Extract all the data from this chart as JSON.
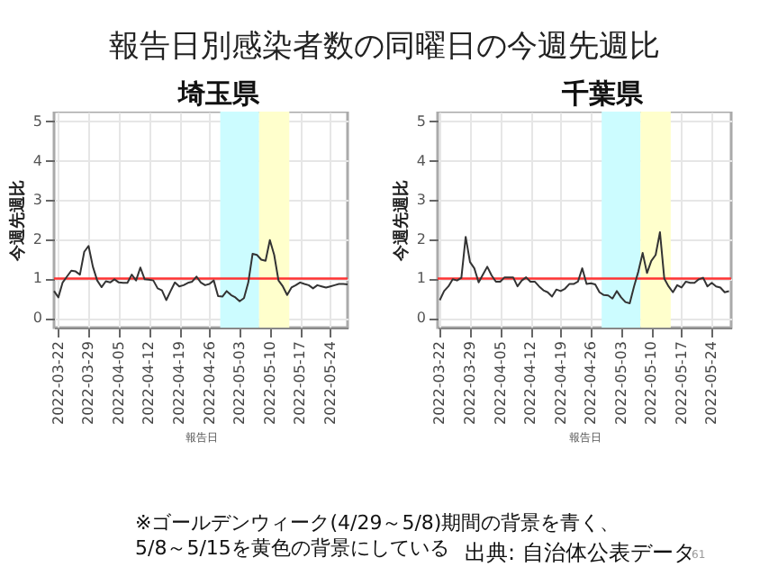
{
  "chart_data": [
    {
      "type": "other",
      "title": "報告日別感染者数の同曜日の今週先週比",
      "annotations": [
        "※ゴールデンウィーク(4/29～5/8)期間の背景を青く、\n5/8～5/15を黄色の背景にしている",
        "出典: 自治体公表データ",
        "61"
      ]
    },
    {
      "type": "line",
      "title": "埼玉県",
      "xlabel": "報告日",
      "ylabel": "今週先週比",
      "x": [
        "2022-03-21",
        "2022-03-22",
        "2022-03-23",
        "2022-03-24",
        "2022-03-25",
        "2022-03-26",
        "2022-03-27",
        "2022-03-28",
        "2022-03-29",
        "2022-03-30",
        "2022-03-31",
        "2022-04-01",
        "2022-04-02",
        "2022-04-03",
        "2022-04-04",
        "2022-04-05",
        "2022-04-06",
        "2022-04-07",
        "2022-04-08",
        "2022-04-09",
        "2022-04-10",
        "2022-04-11",
        "2022-04-12",
        "2022-04-13",
        "2022-04-14",
        "2022-04-15",
        "2022-04-16",
        "2022-04-17",
        "2022-04-18",
        "2022-04-19",
        "2022-04-20",
        "2022-04-21",
        "2022-04-22",
        "2022-04-23",
        "2022-04-24",
        "2022-04-25",
        "2022-04-26",
        "2022-04-27",
        "2022-04-28",
        "2022-04-29",
        "2022-04-30",
        "2022-05-01",
        "2022-05-02",
        "2022-05-03",
        "2022-05-04",
        "2022-05-05",
        "2022-05-06",
        "2022-05-07",
        "2022-05-08",
        "2022-05-09",
        "2022-05-10",
        "2022-05-11",
        "2022-05-12",
        "2022-05-13",
        "2022-05-14",
        "2022-05-15",
        "2022-05-16",
        "2022-05-17",
        "2022-05-18",
        "2022-05-19",
        "2022-05-20",
        "2022-05-21",
        "2022-05-22",
        "2022-05-23",
        "2022-05-24",
        "2022-05-25",
        "2022-05-26",
        "2022-05-27",
        "2022-05-28"
      ],
      "series": [
        {
          "color": "#333333",
          "values": [
            0.68,
            0.52,
            0.9,
            1.05,
            1.2,
            1.18,
            1.1,
            1.68,
            1.83,
            1.3,
            0.95,
            0.78,
            0.93,
            0.9,
            0.98,
            0.9,
            0.89,
            0.89,
            1.1,
            0.95,
            1.28,
            0.98,
            0.97,
            0.95,
            0.75,
            0.7,
            0.45,
            0.68,
            0.9,
            0.8,
            0.83,
            0.89,
            0.92,
            1.05,
            0.9,
            0.83,
            0.86,
            0.95,
            0.55,
            0.54,
            0.68,
            0.58,
            0.52,
            0.42,
            0.5,
            0.9,
            1.63,
            1.6,
            1.48,
            1.45,
            1.98,
            1.6,
            0.95,
            0.8,
            0.58,
            0.77,
            0.83,
            0.9,
            0.86,
            0.83,
            0.75,
            0.83,
            0.8,
            0.77,
            0.8,
            0.83,
            0.86,
            0.86,
            0.85
          ]
        }
      ],
      "xlim": [
        "2022-03-21",
        "2022-05-28"
      ],
      "ylim": [
        -0.25,
        5.25
      ],
      "yticks": [
        0,
        1,
        2,
        3,
        4,
        5
      ],
      "xticks": [
        "2022-03-22",
        "2022-03-29",
        "2022-04-05",
        "2022-04-12",
        "2022-04-19",
        "2022-04-26",
        "2022-05-03",
        "2022-05-10",
        "2022-05-17",
        "2022-05-24"
      ],
      "grid": true,
      "bands": [
        {
          "axis": "x",
          "from": "2022-04-28T12:00",
          "to": "2022-05-07T12:00",
          "color": "#ccfcff"
        },
        {
          "axis": "x",
          "from": "2022-05-07T12:00",
          "to": "2022-05-14T12:00",
          "color": "#ffffcc"
        }
      ],
      "ref_lines": [
        {
          "axis": "y",
          "value": 1,
          "color": "#ff3333"
        }
      ]
    },
    {
      "type": "line",
      "title": "千葉県",
      "xlabel": "報告日",
      "ylabel": "今週先週比",
      "x": [
        "2022-03-22",
        "2022-03-23",
        "2022-03-24",
        "2022-03-25",
        "2022-03-26",
        "2022-03-27",
        "2022-03-28",
        "2022-03-29",
        "2022-03-30",
        "2022-03-31",
        "2022-04-01",
        "2022-04-02",
        "2022-04-03",
        "2022-04-04",
        "2022-04-05",
        "2022-04-06",
        "2022-04-07",
        "2022-04-08",
        "2022-04-09",
        "2022-04-10",
        "2022-04-11",
        "2022-04-12",
        "2022-04-13",
        "2022-04-14",
        "2022-04-15",
        "2022-04-16",
        "2022-04-17",
        "2022-04-18",
        "2022-04-19",
        "2022-04-20",
        "2022-04-21",
        "2022-04-22",
        "2022-04-23",
        "2022-04-24",
        "2022-04-25",
        "2022-04-26",
        "2022-04-27",
        "2022-04-28",
        "2022-04-29",
        "2022-04-30",
        "2022-05-01",
        "2022-05-02",
        "2022-05-03",
        "2022-05-04",
        "2022-05-05",
        "2022-05-06",
        "2022-05-07",
        "2022-05-08",
        "2022-05-09",
        "2022-05-10",
        "2022-05-11",
        "2022-05-12",
        "2022-05-13",
        "2022-05-14",
        "2022-05-15",
        "2022-05-16",
        "2022-05-17",
        "2022-05-18",
        "2022-05-19",
        "2022-05-20",
        "2022-05-21",
        "2022-05-22",
        "2022-05-23",
        "2022-05-24",
        "2022-05-25",
        "2022-05-26",
        "2022-05-27",
        "2022-05-28"
      ],
      "series": [
        {
          "color": "#333333",
          "values": [
            0.45,
            0.68,
            0.8,
            0.98,
            0.95,
            1.02,
            2.06,
            1.42,
            1.26,
            0.9,
            1.1,
            1.3,
            1.08,
            0.92,
            0.92,
            1.03,
            1.03,
            1.03,
            0.8,
            0.95,
            1.03,
            0.92,
            0.92,
            0.8,
            0.7,
            0.65,
            0.54,
            0.72,
            0.68,
            0.74,
            0.86,
            0.86,
            0.92,
            1.26,
            0.86,
            0.88,
            0.85,
            0.65,
            0.58,
            0.57,
            0.49,
            0.68,
            0.52,
            0.4,
            0.37,
            0.8,
            1.18,
            1.65,
            1.14,
            1.45,
            1.6,
            2.18,
            1.0,
            0.8,
            0.65,
            0.83,
            0.77,
            0.92,
            0.89,
            0.89,
            0.98,
            1.02,
            0.8,
            0.89,
            0.8,
            0.77,
            0.65,
            0.68
          ]
        }
      ],
      "xlim": [
        "2022-03-21T12:00",
        "2022-05-28T12:00"
      ],
      "ylim": [
        -0.25,
        5.25
      ],
      "yticks": [
        0,
        1,
        2,
        3,
        4,
        5
      ],
      "xticks": [
        "2022-03-22",
        "2022-03-29",
        "2022-04-05",
        "2022-04-12",
        "2022-04-19",
        "2022-04-26",
        "2022-05-03",
        "2022-05-10",
        "2022-05-17",
        "2022-05-24"
      ],
      "grid": true,
      "bands": [
        {
          "axis": "x",
          "from": "2022-04-28T12:00",
          "to": "2022-05-07T12:00",
          "color": "#ccfcff"
        },
        {
          "axis": "x",
          "from": "2022-05-07T12:00",
          "to": "2022-05-14T12:00",
          "color": "#ffffcc"
        }
      ],
      "ref_lines": [
        {
          "axis": "y",
          "value": 1,
          "color": "#ff3333"
        }
      ]
    }
  ]
}
